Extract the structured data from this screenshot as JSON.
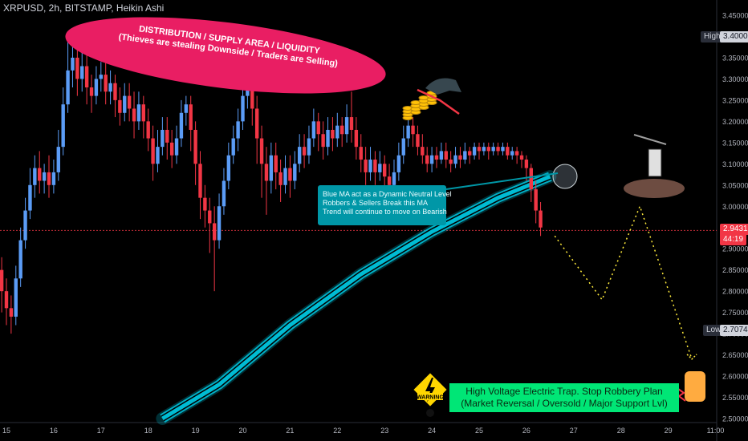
{
  "header": {
    "title": "XRPUSD, 2h, BITSTAMP, Heikin Ashi"
  },
  "annotations": {
    "distribution_line1": "DISTRIBUTION / SUPPLY AREA / LIQUIDITY",
    "distribution_line2": "(Thieves are stealing Downside / Traders are Selling)",
    "ma_note_line1": "Blue MA act as a Dynamic Neutral Level",
    "ma_note_line2": "Robbers & Sellers Break this MA",
    "ma_note_line3": "Trend will continue to move on Bearish",
    "trap_line1": "High Voltage Electric Trap. Stop Robbery Plan",
    "trap_line2": "(Market Reversal / Oversold / Major Support Lvl)",
    "warning_label": "WARNING"
  },
  "price_scale": {
    "high_label": "High",
    "high_value": "3.40000",
    "low_label": "Low",
    "low_value": "2.70744",
    "current_price": "2.94319",
    "countdown": "44:19"
  },
  "colors": {
    "up": "#5b9cf6",
    "down": "#f23645",
    "ma": "#00bcd4",
    "projection": "#ffeb3b",
    "ellipse": "#e91e63",
    "callout": "#0097a7",
    "trap_box": "#00e676"
  },
  "chart_data": {
    "type": "candlestick",
    "style": "Heikin Ashi",
    "symbol": "XRPUSD",
    "interval": "2h",
    "exchange": "BITSTAMP",
    "x_ticks": [
      "15",
      "16",
      "17",
      "18",
      "19",
      "20",
      "21",
      "22",
      "23",
      "24",
      "25",
      "26",
      "27",
      "28",
      "29",
      "11:00"
    ],
    "y_ticks": [
      "3.45000",
      "3.40000",
      "3.35000",
      "3.30000",
      "3.25000",
      "3.20000",
      "3.15000",
      "3.10000",
      "3.05000",
      "3.00000",
      "2.95000",
      "2.90000",
      "2.85000",
      "2.80000",
      "2.75000",
      "2.70000",
      "2.65000",
      "2.60000",
      "2.55000",
      "2.50000"
    ],
    "ylim": [
      2.5,
      3.47
    ],
    "high": 3.4,
    "low": 2.70744,
    "last": 2.94319,
    "projection_path": [
      [
        26.6,
        2.93
      ],
      [
        27.6,
        2.78
      ],
      [
        28.4,
        3.0
      ],
      [
        29.5,
        2.64
      ]
    ],
    "moving_average": [
      [
        18.3,
        2.5
      ],
      [
        19.5,
        2.58
      ],
      [
        21.0,
        2.72
      ],
      [
        22.5,
        2.84
      ],
      [
        24.0,
        2.94
      ],
      [
        25.4,
        3.02
      ],
      [
        26.5,
        3.07
      ]
    ],
    "candles_approx": [
      [
        14.9,
        2.85,
        2.8,
        2.88,
        2.75
      ],
      [
        15.0,
        2.8,
        2.76,
        2.83,
        2.72
      ],
      [
        15.1,
        2.76,
        2.74,
        2.79,
        2.7
      ],
      [
        15.2,
        2.74,
        2.83,
        2.86,
        2.72
      ],
      [
        15.3,
        2.83,
        2.92,
        2.95,
        2.81
      ],
      [
        15.4,
        2.92,
        2.99,
        3.02,
        2.9
      ],
      [
        15.5,
        2.99,
        3.05,
        3.09,
        2.97
      ],
      [
        15.6,
        3.05,
        3.09,
        3.12,
        3.02
      ],
      [
        15.7,
        3.09,
        3.06,
        3.13,
        3.03
      ],
      [
        15.8,
        3.06,
        3.08,
        3.1,
        3.03
      ],
      [
        15.9,
        3.08,
        3.05,
        3.12,
        3.02
      ],
      [
        16.0,
        3.05,
        3.08,
        3.11,
        3.03
      ],
      [
        16.1,
        3.08,
        3.14,
        3.18,
        3.06
      ],
      [
        16.2,
        3.14,
        3.24,
        3.28,
        3.12
      ],
      [
        16.3,
        3.24,
        3.32,
        3.39,
        3.22
      ],
      [
        16.4,
        3.32,
        3.35,
        3.4,
        3.28
      ],
      [
        16.5,
        3.35,
        3.3,
        3.38,
        3.26
      ],
      [
        16.6,
        3.3,
        3.33,
        3.37,
        3.27
      ],
      [
        16.7,
        3.33,
        3.28,
        3.36,
        3.24
      ],
      [
        16.8,
        3.28,
        3.26,
        3.31,
        3.22
      ],
      [
        16.9,
        3.26,
        3.3,
        3.33,
        3.24
      ],
      [
        17.0,
        3.3,
        3.31,
        3.34,
        3.27
      ],
      [
        17.1,
        3.31,
        3.27,
        3.34,
        3.24
      ],
      [
        17.2,
        3.27,
        3.29,
        3.32,
        3.24
      ],
      [
        17.3,
        3.29,
        3.25,
        3.31,
        3.21
      ],
      [
        17.4,
        3.25,
        3.22,
        3.28,
        3.19
      ],
      [
        17.5,
        3.22,
        3.26,
        3.29,
        3.2
      ],
      [
        17.6,
        3.26,
        3.23,
        3.29,
        3.2
      ],
      [
        17.7,
        3.23,
        3.2,
        3.27,
        3.16
      ],
      [
        17.8,
        3.2,
        3.24,
        3.27,
        3.18
      ],
      [
        17.9,
        3.24,
        3.2,
        3.26,
        3.16
      ],
      [
        18.0,
        3.2,
        3.16,
        3.23,
        3.13
      ],
      [
        18.1,
        3.16,
        3.1,
        3.19,
        3.06
      ],
      [
        18.2,
        3.1,
        3.14,
        3.18,
        3.08
      ],
      [
        18.3,
        3.14,
        3.18,
        3.21,
        3.12
      ],
      [
        18.4,
        3.18,
        3.15,
        3.21,
        3.11
      ],
      [
        18.5,
        3.15,
        3.12,
        3.18,
        3.09
      ],
      [
        18.6,
        3.12,
        3.16,
        3.19,
        3.1
      ],
      [
        18.7,
        3.16,
        3.22,
        3.25,
        3.14
      ],
      [
        18.8,
        3.22,
        3.24,
        3.26,
        3.19
      ],
      [
        18.9,
        3.24,
        3.18,
        3.26,
        3.13
      ],
      [
        19.0,
        3.18,
        3.1,
        3.2,
        3.05
      ],
      [
        19.1,
        3.1,
        3.02,
        3.13,
        2.97
      ],
      [
        19.2,
        3.02,
        2.99,
        3.05,
        2.95
      ],
      [
        19.3,
        2.99,
        2.96,
        3.02,
        2.89
      ],
      [
        19.4,
        2.96,
        2.92,
        3.0,
        2.8
      ],
      [
        19.5,
        2.92,
        3.0,
        3.03,
        2.9
      ],
      [
        19.6,
        3.0,
        3.06,
        3.09,
        2.98
      ],
      [
        19.7,
        3.06,
        3.12,
        3.15,
        3.04
      ],
      [
        19.8,
        3.12,
        3.16,
        3.19,
        3.1
      ],
      [
        19.9,
        3.16,
        3.2,
        3.23,
        3.13
      ],
      [
        20.0,
        3.2,
        3.26,
        3.33,
        3.18
      ],
      [
        20.1,
        3.26,
        3.29,
        3.32,
        3.23
      ],
      [
        20.2,
        3.29,
        3.23,
        3.32,
        3.19
      ],
      [
        20.3,
        3.23,
        3.16,
        3.26,
        3.1
      ],
      [
        20.4,
        3.16,
        3.1,
        3.19,
        3.02
      ],
      [
        20.5,
        3.1,
        3.06,
        3.14,
        2.98
      ],
      [
        20.6,
        3.06,
        3.12,
        3.15,
        3.03
      ],
      [
        20.7,
        3.12,
        3.08,
        3.15,
        3.04
      ],
      [
        20.8,
        3.08,
        3.05,
        3.11,
        3.01
      ],
      [
        20.9,
        3.05,
        3.09,
        3.12,
        3.03
      ],
      [
        21.0,
        3.09,
        3.06,
        3.12,
        3.02
      ],
      [
        21.1,
        3.06,
        3.1,
        3.13,
        3.04
      ],
      [
        21.2,
        3.1,
        3.14,
        3.17,
        3.08
      ],
      [
        21.3,
        3.14,
        3.12,
        3.17,
        3.09
      ],
      [
        21.4,
        3.12,
        3.16,
        3.19,
        3.1
      ],
      [
        21.5,
        3.16,
        3.2,
        3.23,
        3.14
      ],
      [
        21.6,
        3.2,
        3.17,
        3.22,
        3.13
      ],
      [
        21.7,
        3.17,
        3.14,
        3.2,
        3.11
      ],
      [
        21.8,
        3.14,
        3.18,
        3.21,
        3.12
      ],
      [
        21.9,
        3.18,
        3.16,
        3.21,
        3.13
      ],
      [
        22.0,
        3.16,
        3.19,
        3.22,
        3.14
      ],
      [
        22.1,
        3.19,
        3.17,
        3.21,
        3.14
      ],
      [
        22.2,
        3.17,
        3.21,
        3.24,
        3.15
      ],
      [
        22.3,
        3.21,
        3.18,
        3.27,
        3.15
      ],
      [
        22.4,
        3.18,
        3.14,
        3.21,
        3.11
      ],
      [
        22.5,
        3.14,
        3.11,
        3.17,
        3.08
      ],
      [
        22.6,
        3.11,
        3.08,
        3.14,
        3.05
      ],
      [
        22.7,
        3.08,
        3.11,
        3.14,
        3.06
      ],
      [
        22.8,
        3.11,
        3.08,
        3.13,
        3.05
      ],
      [
        22.9,
        3.08,
        3.1,
        3.13,
        3.06
      ],
      [
        23.0,
        3.1,
        3.07,
        3.12,
        3.04
      ],
      [
        23.1,
        3.07,
        3.05,
        3.1,
        3.03
      ],
      [
        23.2,
        3.05,
        3.08,
        3.11,
        3.03
      ],
      [
        23.3,
        3.08,
        3.12,
        3.15,
        3.06
      ],
      [
        23.4,
        3.12,
        3.16,
        3.19,
        3.1
      ],
      [
        23.5,
        3.16,
        3.19,
        3.22,
        3.14
      ],
      [
        23.6,
        3.19,
        3.17,
        3.21,
        3.14
      ],
      [
        23.7,
        3.17,
        3.14,
        3.19,
        3.12
      ],
      [
        23.8,
        3.14,
        3.12,
        3.17,
        3.1
      ],
      [
        23.9,
        3.12,
        3.1,
        3.14,
        3.08
      ],
      [
        24.0,
        3.1,
        3.12,
        3.14,
        3.08
      ],
      [
        24.1,
        3.12,
        3.11,
        3.14,
        3.09
      ],
      [
        24.2,
        3.11,
        3.13,
        3.15,
        3.1
      ],
      [
        24.3,
        3.13,
        3.11,
        3.15,
        3.09
      ],
      [
        24.4,
        3.11,
        3.1,
        3.13,
        3.08
      ],
      [
        24.5,
        3.1,
        3.12,
        3.14,
        3.09
      ],
      [
        24.6,
        3.12,
        3.11,
        3.14,
        3.09
      ],
      [
        24.7,
        3.11,
        3.13,
        3.15,
        3.1
      ],
      [
        24.8,
        3.13,
        3.12,
        3.14,
        3.1
      ],
      [
        24.9,
        3.12,
        3.14,
        3.15,
        3.11
      ],
      [
        25.0,
        3.14,
        3.13,
        3.15,
        3.11
      ],
      [
        25.1,
        3.13,
        3.14,
        3.15,
        3.12
      ],
      [
        25.2,
        3.14,
        3.13,
        3.15,
        3.11
      ],
      [
        25.3,
        3.13,
        3.14,
        3.15,
        3.12
      ],
      [
        25.4,
        3.14,
        3.13,
        3.15,
        3.12
      ],
      [
        25.5,
        3.13,
        3.14,
        3.15,
        3.12
      ],
      [
        25.6,
        3.14,
        3.12,
        3.15,
        3.11
      ],
      [
        25.7,
        3.12,
        3.13,
        3.14,
        3.11
      ],
      [
        25.8,
        3.13,
        3.12,
        3.14,
        3.1
      ],
      [
        25.9,
        3.12,
        3.11,
        3.13,
        3.09
      ],
      [
        26.0,
        3.11,
        3.09,
        3.12,
        3.06
      ],
      [
        26.1,
        3.09,
        3.04,
        3.1,
        3.01
      ],
      [
        26.2,
        3.04,
        2.99,
        3.06,
        2.96
      ],
      [
        26.3,
        2.99,
        2.95,
        3.01,
        2.93
      ]
    ]
  }
}
